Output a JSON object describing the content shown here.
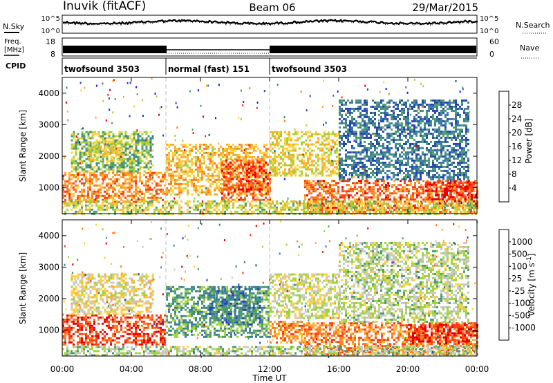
{
  "header": {
    "station": "Inuvik (fitACF)",
    "beam": "Beam 06",
    "date": "29/Mar/2015"
  },
  "noise_panel": {
    "left_label": "N.Sky",
    "right_label": "N.Search",
    "left_ticks": [
      "10^5",
      "10^0"
    ],
    "right_ticks": [
      "10^5",
      "10^0"
    ]
  },
  "freq_panel": {
    "left_label_1": "Freq.",
    "left_label_2": "[MHz]",
    "right_label": "Nave",
    "left_ticks": [
      "18",
      "8"
    ],
    "right_ticks": [
      "60",
      "0"
    ]
  },
  "cpid_panel": {
    "label": "CPID",
    "segments": [
      {
        "name": "twofsound 3503",
        "start_hour": 0,
        "end_hour": 6
      },
      {
        "name": "normal (fast) 151",
        "start_hour": 6,
        "end_hour": 12
      },
      {
        "name": "twofsound 3503",
        "start_hour": 12,
        "end_hour": 24
      }
    ]
  },
  "xaxis": {
    "label": "Time UT",
    "ticks": [
      "00:00",
      "04:00",
      "08:00",
      "12:00",
      "16:00",
      "20:00",
      "00:00"
    ],
    "range_hours": [
      0,
      24
    ]
  },
  "chart_data": [
    {
      "type": "heatmap",
      "name": "power",
      "ylabel": "Slant Range [km]",
      "yticks": [
        "1000",
        "2000",
        "3000",
        "4000"
      ],
      "ylim": [
        180,
        4500
      ],
      "xlim": [
        0,
        24
      ],
      "colorbar": {
        "label": "Power [dB]",
        "ticks": [
          "4",
          "8",
          "12",
          "16",
          "20",
          "24",
          "28"
        ],
        "range": [
          0,
          32
        ],
        "colors": [
          "#0b1fff",
          "#2446b0",
          "#3c7a9b",
          "#4c9c70",
          "#9fd33d",
          "#ffd23a",
          "#fdae2d",
          "#ff7a1e",
          "#ff3c14",
          "#e60000"
        ]
      },
      "regions": [
        {
          "x": [
            0.0,
            6.0
          ],
          "y": [
            550,
            1500
          ],
          "level": 0.72
        },
        {
          "x": [
            0.5,
            5.2
          ],
          "y": [
            1500,
            2800
          ],
          "level": 0.42
        },
        {
          "x": [
            1.5,
            3.5
          ],
          "y": [
            1900,
            2500
          ],
          "level": 0.55
        },
        {
          "x": [
            6.0,
            12.0
          ],
          "y": [
            800,
            2400
          ],
          "level": 0.62
        },
        {
          "x": [
            9.2,
            12.0
          ],
          "y": [
            600,
            1900
          ],
          "level": 0.82
        },
        {
          "x": [
            12.0,
            16.0
          ],
          "y": [
            1400,
            2800
          ],
          "level": 0.55
        },
        {
          "x": [
            14.0,
            24.0
          ],
          "y": [
            250,
            1250
          ],
          "level": 0.78
        },
        {
          "x": [
            21.0,
            24.0
          ],
          "y": [
            550,
            1200
          ],
          "level": 0.88
        },
        {
          "x": [
            16.0,
            23.5
          ],
          "y": [
            1300,
            3800
          ],
          "level": 0.25
        },
        {
          "x": [
            0.0,
            24.0
          ],
          "y": [
            200,
            600
          ],
          "level": 0.5
        }
      ]
    },
    {
      "type": "heatmap",
      "name": "velocity",
      "ylabel": "Slant Range [km]",
      "yticks": [
        "1000",
        "2000",
        "3000",
        "4000"
      ],
      "ylim": [
        180,
        4500
      ],
      "xlim": [
        0,
        24
      ],
      "colorbar": {
        "label": "Velocity [m s^-1]",
        "ticks": [
          "-1000",
          "-500",
          "-100",
          "-25",
          "25",
          "100",
          "500",
          "1000"
        ],
        "range": [
          -1200,
          1200
        ],
        "colors": [
          "#e60000",
          "#ff3c14",
          "#ff7a1e",
          "#fdae2d",
          "#ffd23a",
          "#c8c8c8",
          "#9fd33d",
          "#4c9c70",
          "#3c7a9b",
          "#1f3fc8"
        ]
      },
      "regions": [
        {
          "x": [
            0.0,
            6.0
          ],
          "y": [
            550,
            1500
          ],
          "level": 0.15
        },
        {
          "x": [
            0.5,
            5.2
          ],
          "y": [
            1500,
            2800
          ],
          "level": 0.5
        },
        {
          "x": [
            6.0,
            12.0
          ],
          "y": [
            800,
            2400
          ],
          "level": 0.74
        },
        {
          "x": [
            8.5,
            11.5
          ],
          "y": [
            1200,
            2400
          ],
          "level": 0.82
        },
        {
          "x": [
            12.0,
            16.0
          ],
          "y": [
            1400,
            2800
          ],
          "level": 0.56
        },
        {
          "x": [
            12.0,
            14.0
          ],
          "y": [
            600,
            1300
          ],
          "level": 0.3
        },
        {
          "x": [
            14.0,
            24.0
          ],
          "y": [
            250,
            1250
          ],
          "level": 0.25
        },
        {
          "x": [
            20.0,
            24.0
          ],
          "y": [
            550,
            1200
          ],
          "level": 0.12
        },
        {
          "x": [
            0.0,
            24.0
          ],
          "y": [
            200,
            500
          ],
          "level": 0.62
        },
        {
          "x": [
            16.0,
            23.5
          ],
          "y": [
            1300,
            3800
          ],
          "level": 0.6
        }
      ]
    }
  ]
}
